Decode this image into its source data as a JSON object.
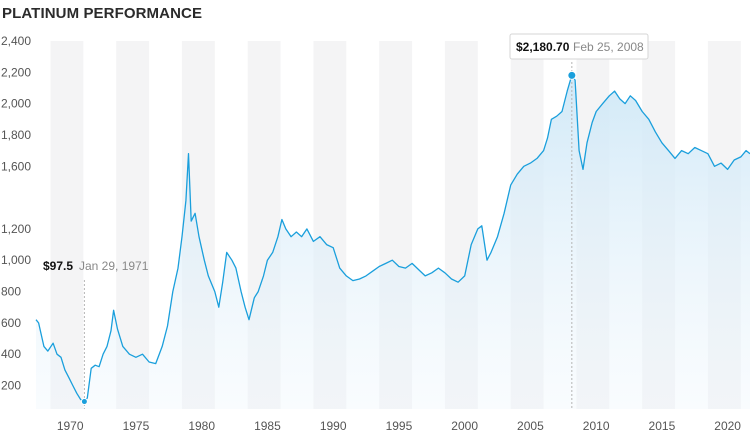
{
  "chart_data": {
    "type": "area",
    "title": "PLATINUM PERFORMANCE",
    "xlabel": "",
    "ylabel": "",
    "xlim": [
      1967.4,
      2021.7
    ],
    "ylim": [
      50,
      2400
    ],
    "y_ticks": [
      "2,400",
      "2,200",
      "2,000",
      "1,800",
      "1,600",
      "1,200",
      "1,000",
      "800",
      "600",
      "400",
      "200"
    ],
    "y_tick_values": [
      2400,
      2200,
      2000,
      1800,
      1600,
      1200,
      1000,
      800,
      600,
      400,
      200
    ],
    "x_ticks": [
      "1970",
      "1975",
      "1980",
      "1985",
      "1990",
      "1995",
      "2000",
      "2005",
      "2010",
      "2015",
      "2020"
    ],
    "x_tick_values": [
      1970,
      1975,
      1980,
      1985,
      1990,
      1995,
      2000,
      2005,
      2010,
      2015,
      2020
    ],
    "grid": "alternating vertical bands",
    "colors": {
      "line": "#1a9fdc",
      "fill": "#d6ecf8",
      "band": "#f4f4f5"
    },
    "series": [
      {
        "values": [
          [
            1967.4,
            620
          ],
          [
            1967.6,
            600
          ],
          [
            1968.0,
            450
          ],
          [
            1968.3,
            420
          ],
          [
            1968.7,
            470
          ],
          [
            1969.0,
            400
          ],
          [
            1969.3,
            380
          ],
          [
            1969.6,
            300
          ],
          [
            1969.9,
            250
          ],
          [
            1970.2,
            200
          ],
          [
            1970.5,
            150
          ],
          [
            1970.8,
            110
          ],
          [
            1971.08,
            97.5
          ],
          [
            1971.3,
            120
          ],
          [
            1971.6,
            310
          ],
          [
            1971.9,
            330
          ],
          [
            1972.2,
            320
          ],
          [
            1972.5,
            400
          ],
          [
            1972.8,
            450
          ],
          [
            1973.1,
            550
          ],
          [
            1973.3,
            680
          ],
          [
            1973.6,
            560
          ],
          [
            1974.0,
            450
          ],
          [
            1974.5,
            400
          ],
          [
            1975.0,
            380
          ],
          [
            1975.5,
            400
          ],
          [
            1976.0,
            350
          ],
          [
            1976.5,
            340
          ],
          [
            1977.0,
            450
          ],
          [
            1977.4,
            580
          ],
          [
            1977.8,
            800
          ],
          [
            1978.2,
            950
          ],
          [
            1978.5,
            1150
          ],
          [
            1978.8,
            1380
          ],
          [
            1979.0,
            1680
          ],
          [
            1979.2,
            1250
          ],
          [
            1979.5,
            1300
          ],
          [
            1979.8,
            1150
          ],
          [
            1980.2,
            1000
          ],
          [
            1980.5,
            900
          ],
          [
            1981.0,
            800
          ],
          [
            1981.3,
            700
          ],
          [
            1981.6,
            860
          ],
          [
            1981.9,
            1050
          ],
          [
            1982.3,
            1000
          ],
          [
            1982.6,
            950
          ],
          [
            1983.0,
            800
          ],
          [
            1983.3,
            700
          ],
          [
            1983.6,
            620
          ],
          [
            1984.0,
            760
          ],
          [
            1984.3,
            800
          ],
          [
            1984.7,
            900
          ],
          [
            1985.0,
            1000
          ],
          [
            1985.4,
            1050
          ],
          [
            1985.8,
            1150
          ],
          [
            1986.1,
            1260
          ],
          [
            1986.4,
            1200
          ],
          [
            1986.8,
            1150
          ],
          [
            1987.2,
            1180
          ],
          [
            1987.6,
            1150
          ],
          [
            1988.0,
            1200
          ],
          [
            1988.5,
            1120
          ],
          [
            1989.0,
            1150
          ],
          [
            1989.5,
            1100
          ],
          [
            1990.0,
            1080
          ],
          [
            1990.5,
            950
          ],
          [
            1991.0,
            900
          ],
          [
            1991.5,
            870
          ],
          [
            1992.0,
            880
          ],
          [
            1992.5,
            900
          ],
          [
            1993.0,
            930
          ],
          [
            1993.5,
            960
          ],
          [
            1994.0,
            980
          ],
          [
            1994.5,
            1000
          ],
          [
            1995.0,
            960
          ],
          [
            1995.5,
            950
          ],
          [
            1996.0,
            980
          ],
          [
            1996.5,
            940
          ],
          [
            1997.0,
            900
          ],
          [
            1997.5,
            920
          ],
          [
            1998.0,
            950
          ],
          [
            1998.5,
            920
          ],
          [
            1999.0,
            880
          ],
          [
            1999.5,
            860
          ],
          [
            2000.0,
            900
          ],
          [
            2000.5,
            1100
          ],
          [
            2001.0,
            1200
          ],
          [
            2001.3,
            1220
          ],
          [
            2001.7,
            1000
          ],
          [
            2002.0,
            1050
          ],
          [
            2002.5,
            1150
          ],
          [
            2003.0,
            1300
          ],
          [
            2003.5,
            1480
          ],
          [
            2004.0,
            1550
          ],
          [
            2004.5,
            1600
          ],
          [
            2005.0,
            1620
          ],
          [
            2005.5,
            1650
          ],
          [
            2006.0,
            1700
          ],
          [
            2006.3,
            1780
          ],
          [
            2006.6,
            1900
          ],
          [
            2007.0,
            1920
          ],
          [
            2007.4,
            1950
          ],
          [
            2007.8,
            2080
          ],
          [
            2008.15,
            2180.7
          ],
          [
            2008.4,
            2150
          ],
          [
            2008.7,
            1700
          ],
          [
            2009.0,
            1580
          ],
          [
            2009.3,
            1750
          ],
          [
            2009.7,
            1880
          ],
          [
            2010.0,
            1950
          ],
          [
            2010.5,
            2000
          ],
          [
            2011.0,
            2050
          ],
          [
            2011.4,
            2080
          ],
          [
            2011.8,
            2030
          ],
          [
            2012.2,
            2000
          ],
          [
            2012.6,
            2050
          ],
          [
            2013.0,
            2020
          ],
          [
            2013.5,
            1950
          ],
          [
            2014.0,
            1900
          ],
          [
            2014.5,
            1820
          ],
          [
            2015.0,
            1750
          ],
          [
            2015.5,
            1700
          ],
          [
            2016.0,
            1650
          ],
          [
            2016.5,
            1700
          ],
          [
            2017.0,
            1680
          ],
          [
            2017.5,
            1720
          ],
          [
            2018.0,
            1700
          ],
          [
            2018.5,
            1680
          ],
          [
            2019.0,
            1600
          ],
          [
            2019.5,
            1620
          ],
          [
            2020.0,
            1580
          ],
          [
            2020.5,
            1640
          ],
          [
            2021.0,
            1660
          ],
          [
            2021.4,
            1700
          ],
          [
            2021.7,
            1680
          ]
        ]
      }
    ],
    "annotations": [
      {
        "value_label": "$97.5",
        "date_label": "Jan 29, 1971",
        "x": 1971.08,
        "y": 97.5
      },
      {
        "value_label": "$2,180.70",
        "date_label": "Feb 25, 2008",
        "x": 2008.15,
        "y": 2180.7
      }
    ]
  }
}
